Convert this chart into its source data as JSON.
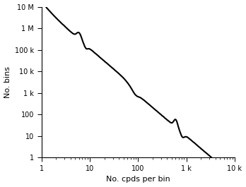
{
  "xlabel": "No. cpds per bin",
  "ylabel": "No. bins",
  "xlim": [
    1,
    10000
  ],
  "ylim": [
    1,
    10000000
  ],
  "xticks": [
    1,
    10,
    100,
    1000,
    10000
  ],
  "yticks": [
    1,
    10,
    100,
    1000,
    10000,
    100000,
    1000000,
    10000000
  ],
  "xticklabels": [
    "1",
    "10",
    "100",
    "1 k",
    "10 k"
  ],
  "yticklabels": [
    "1",
    "10",
    "100",
    "1 k",
    "10 k",
    "100 k",
    "1 M",
    "10 M"
  ],
  "line_color": "#000000",
  "line_width": 1.5,
  "background_color": "#ffffff"
}
